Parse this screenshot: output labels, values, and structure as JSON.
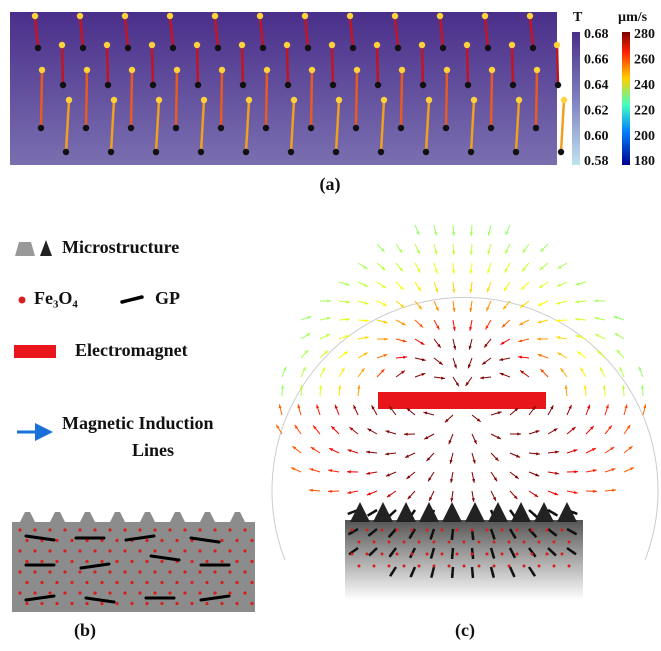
{
  "panel_a": {
    "label": "(a)",
    "colorbar_t": {
      "title": "T",
      "ticks": [
        "0.68",
        "0.66",
        "0.64",
        "0.62",
        "0.60",
        "0.58"
      ]
    },
    "colorbar_v": {
      "title": "µm/s",
      "ticks": [
        "280",
        "260",
        "240",
        "220",
        "200",
        "180"
      ]
    }
  },
  "panel_b": {
    "label": "(b)",
    "legend": {
      "microstructure": "Microstructure",
      "particle": "Fe₃O₄",
      "gp": "GP",
      "electromagnet": "Electromagnet",
      "field_line_1": "Magnetic Induction",
      "field_line_2": "Lines"
    }
  },
  "panel_c": {
    "label": "(c)"
  }
}
